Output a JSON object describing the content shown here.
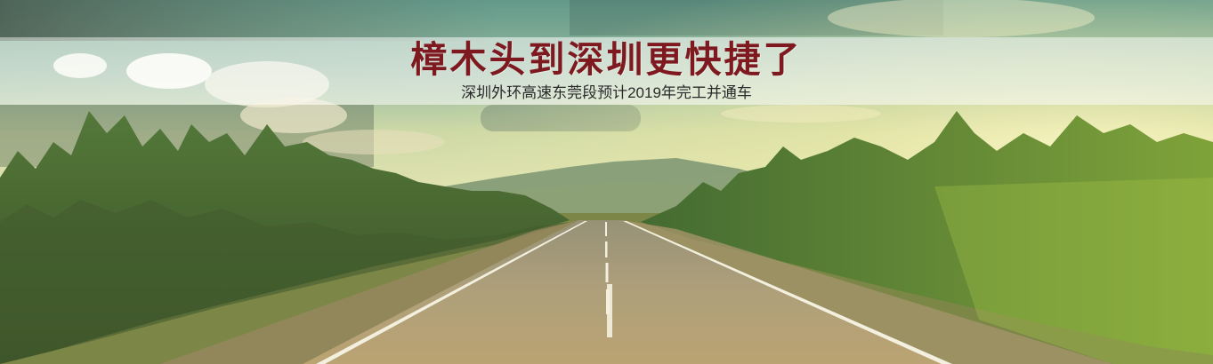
{
  "banner": {
    "title": "樟木头到深圳更快捷了",
    "subtitle": "深圳外环高速东莞段预计2019年完工并通车"
  }
}
